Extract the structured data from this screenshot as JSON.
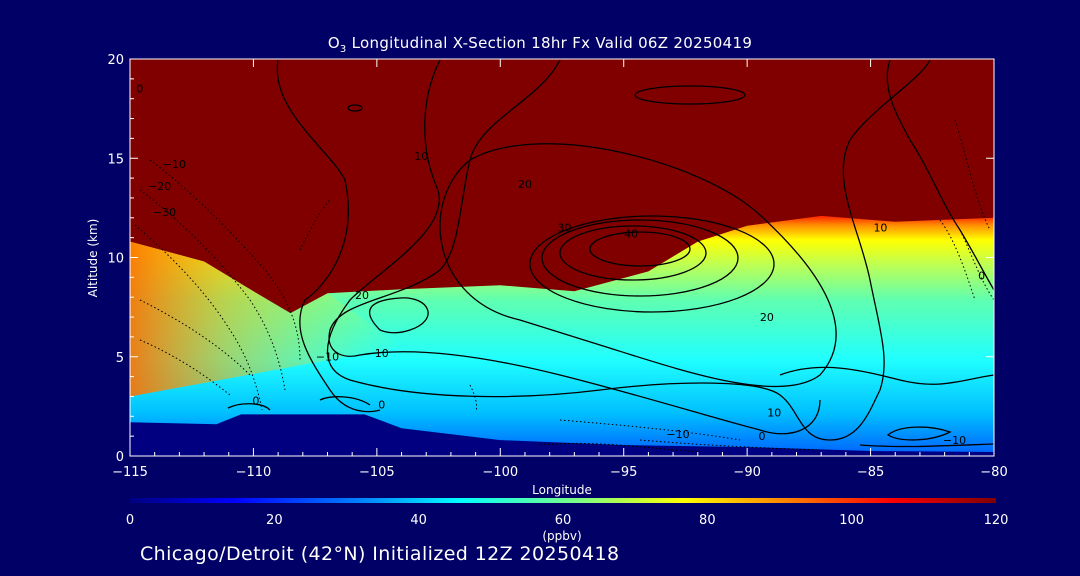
{
  "chart_data": {
    "type": "heatmap",
    "title_prefix": "O",
    "title_subscript": "3",
    "title_rest": " Longitudinal X-Section 18hr  Fx Valid 06Z 20250419",
    "xlabel": "Longitude",
    "ylabel": "Altitude (km)",
    "xlim": [
      -115,
      -80
    ],
    "ylim": [
      0,
      20
    ],
    "x_ticks": [
      -115,
      -110,
      -105,
      -100,
      -95,
      -90,
      -85,
      -80
    ],
    "x_tick_labels": [
      "−115",
      "−110",
      "−105",
      "−100",
      "−95",
      "−90",
      "−85",
      "−80"
    ],
    "y_ticks": [
      0,
      5,
      10,
      15,
      20
    ],
    "y_tick_labels": [
      "0",
      "5",
      "10",
      "15",
      "20"
    ],
    "colorbar": {
      "min": 0,
      "max": 120,
      "ticks": [
        0,
        20,
        40,
        60,
        80,
        100,
        120
      ],
      "tick_labels": [
        "0",
        "20",
        "40",
        "60",
        "80",
        "100",
        "120"
      ],
      "units": "(ppbv)",
      "colors": [
        "#000080",
        "#0000ff",
        "#0090ff",
        "#00ffff",
        "#80ff80",
        "#ffff00",
        "#ff8000",
        "#ff0000",
        "#800000"
      ]
    },
    "filled_field": {
      "saturated_top_ppbv": 120,
      "top_boundary_altitude_km": [
        {
          "lon": -115,
          "alt": 10.8
        },
        {
          "lon": -112,
          "alt": 9.8
        },
        {
          "lon": -110,
          "alt": 8.3
        },
        {
          "lon": -108.5,
          "alt": 7.2
        },
        {
          "lon": -107,
          "alt": 8.2
        },
        {
          "lon": -104,
          "alt": 8.4
        },
        {
          "lon": -100,
          "alt": 8.6
        },
        {
          "lon": -97,
          "alt": 8.3
        },
        {
          "lon": -94,
          "alt": 9.3
        },
        {
          "lon": -92,
          "alt": 10.8
        },
        {
          "lon": -90,
          "alt": 11.6
        },
        {
          "lon": -87,
          "alt": 12.1
        },
        {
          "lon": -84,
          "alt": 11.8
        },
        {
          "lon": -80,
          "alt": 12.0
        }
      ],
      "ground_altitude_km": [
        {
          "lon": -115,
          "alt": 1.7
        },
        {
          "lon": -111.5,
          "alt": 1.6
        },
        {
          "lon": -110.5,
          "alt": 2.1
        },
        {
          "lon": -105.5,
          "alt": 2.1
        },
        {
          "lon": -104,
          "alt": 1.4
        },
        {
          "lon": -100,
          "alt": 0.8
        },
        {
          "lon": -95,
          "alt": 0.55
        },
        {
          "lon": -90,
          "alt": 0.45
        },
        {
          "lon": -85,
          "alt": 0.25
        },
        {
          "lon": -80,
          "alt": 0.2
        }
      ]
    },
    "contour_labels": [
      {
        "text": "0",
        "lon": -114.6,
        "alt": 18.3
      },
      {
        "text": "−10",
        "lon": -113.2,
        "alt": 14.5
      },
      {
        "text": "−20",
        "lon": -113.8,
        "alt": 13.4
      },
      {
        "text": "−30",
        "lon": -113.6,
        "alt": 12.1
      },
      {
        "text": "10",
        "lon": -103.2,
        "alt": 14.9
      },
      {
        "text": "20",
        "lon": -99,
        "alt": 13.5
      },
      {
        "text": "30",
        "lon": -97.4,
        "alt": 11.3
      },
      {
        "text": "40",
        "lon": -94.7,
        "alt": 11.0
      },
      {
        "text": "10",
        "lon": -84.6,
        "alt": 11.3
      },
      {
        "text": "0",
        "lon": -80.5,
        "alt": 8.9
      },
      {
        "text": "20",
        "lon": -105.6,
        "alt": 7.9
      },
      {
        "text": "20",
        "lon": -89.2,
        "alt": 6.8
      },
      {
        "text": "10",
        "lon": -104.8,
        "alt": 5.0
      },
      {
        "text": "10",
        "lon": -88.9,
        "alt": 2.0
      },
      {
        "text": "−10",
        "lon": -107,
        "alt": 4.8
      },
      {
        "text": "0",
        "lon": -109.9,
        "alt": 2.6
      },
      {
        "text": "0",
        "lon": -104.8,
        "alt": 2.4
      },
      {
        "text": "−10",
        "lon": -92.8,
        "alt": 0.9
      },
      {
        "text": "0",
        "lon": -89.4,
        "alt": 0.8
      },
      {
        "text": "−10",
        "lon": -81.6,
        "alt": 0.6
      }
    ]
  },
  "footer": "Chicago/Detroit (42°N) Initialized 12Z 20250418"
}
